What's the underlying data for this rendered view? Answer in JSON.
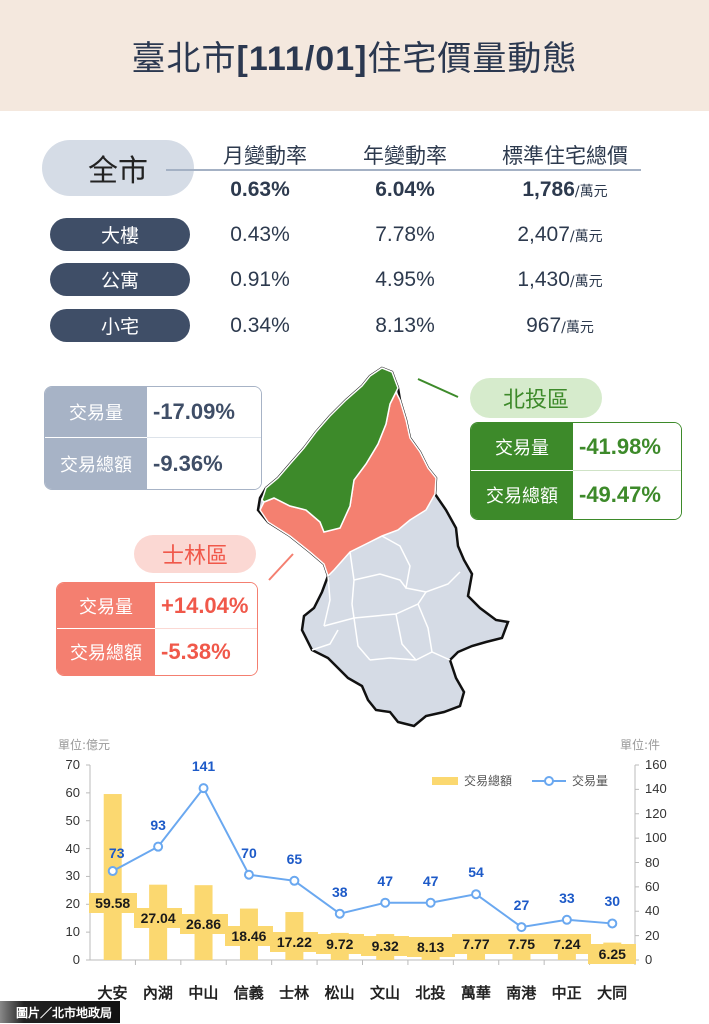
{
  "header": {
    "title_prefix": "臺北市",
    "title_period": "[111/01]",
    "title_suffix": "住宅價量動態"
  },
  "summary": {
    "city_label": "全市",
    "columns": [
      "月變動率",
      "年變動率",
      "標準住宅總價"
    ],
    "city_row": {
      "monthly": "0.63%",
      "yearly": "6.04%",
      "price": "1,786",
      "unit": "/萬元"
    },
    "rows": [
      {
        "label": "大樓",
        "monthly": "0.43%",
        "yearly": "7.78%",
        "price": "2,407",
        "unit": "/萬元"
      },
      {
        "label": "公寓",
        "monthly": "0.91%",
        "yearly": "4.95%",
        "price": "1,430",
        "unit": "/萬元"
      },
      {
        "label": "小宅",
        "monthly": "0.34%",
        "yearly": "8.13%",
        "price": "967",
        "unit": "/萬元"
      }
    ]
  },
  "city_stats": {
    "volume_label": "交易量",
    "volume": "-17.09%",
    "amount_label": "交易總額",
    "amount": "-9.36%"
  },
  "beitou": {
    "name": "北投區",
    "volume_label": "交易量",
    "volume": "-41.98%",
    "amount_label": "交易總額",
    "amount": "-49.47%",
    "color": "#3d8a2a"
  },
  "shilin": {
    "name": "士林區",
    "volume_label": "交易量",
    "volume": "+14.04%",
    "amount_label": "交易總額",
    "amount": "-5.38%",
    "color": "#f47f70"
  },
  "chart": {
    "left_unit": "單位:億元",
    "right_unit": "單位:件",
    "legend_bar": "交易總額",
    "legend_line": "交易量"
  },
  "chart_data": {
    "type": "bar",
    "title": "",
    "categories": [
      "大安",
      "內湖",
      "中山",
      "信義",
      "士林",
      "松山",
      "文山",
      "北投",
      "萬華",
      "南港",
      "中正",
      "大同"
    ],
    "series": [
      {
        "name": "交易總額",
        "type": "bar",
        "axis": "left",
        "unit": "億元",
        "values": [
          59.58,
          27.04,
          26.86,
          18.46,
          17.22,
          9.72,
          9.32,
          8.13,
          7.77,
          7.75,
          7.24,
          6.25
        ]
      },
      {
        "name": "交易量",
        "type": "line",
        "axis": "right",
        "unit": "件",
        "values": [
          73,
          93,
          141,
          70,
          65,
          38,
          47,
          47,
          54,
          27,
          33,
          30
        ]
      }
    ],
    "xlabel": "",
    "ylabel": "單位:億元",
    "y2label": "單位:件",
    "ylim": [
      0,
      70
    ],
    "y2lim": [
      0,
      160
    ],
    "yticks": [
      0,
      10,
      20,
      30,
      40,
      50,
      60,
      70
    ],
    "y2ticks": [
      0,
      20,
      40,
      60,
      80,
      100,
      120,
      140,
      160
    ],
    "legend_position": "top-right",
    "grid": false
  },
  "credit": "圖片／北市地政局"
}
